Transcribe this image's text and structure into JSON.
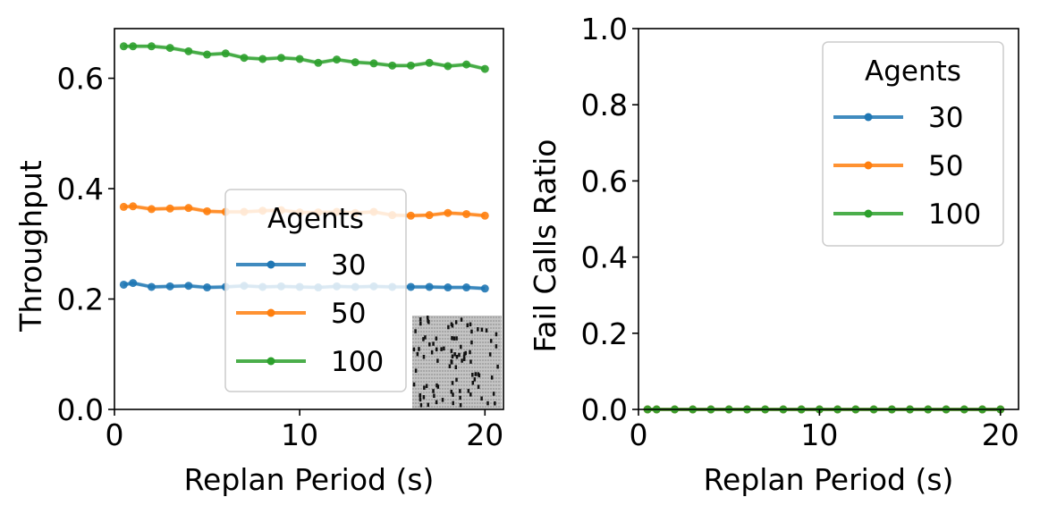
{
  "chart_data": [
    {
      "type": "line",
      "title": "",
      "xlabel": "Replan Period (s)",
      "ylabel": "Throughput",
      "xlim": [
        0,
        21
      ],
      "ylim": [
        0,
        0.69
      ],
      "xticks": [
        0,
        10,
        20
      ],
      "yticks": [
        0.0,
        0.2,
        0.4,
        0.6
      ],
      "ytick_labels": [
        "0.0",
        "0.2",
        "0.4",
        "0.6"
      ],
      "legend": {
        "title": "Agents",
        "location": "center-right"
      },
      "inset": "warehouse-grid-map",
      "x": [
        0.5,
        1,
        2,
        3,
        4,
        5,
        6,
        7,
        8,
        9,
        10,
        11,
        12,
        13,
        14,
        15,
        16,
        17,
        18,
        19,
        20
      ],
      "series": [
        {
          "name": "30",
          "color": "#1f77b4",
          "values": [
            0.226,
            0.229,
            0.222,
            0.223,
            0.224,
            0.221,
            0.222,
            0.224,
            0.222,
            0.223,
            0.222,
            0.221,
            0.223,
            0.222,
            0.223,
            0.222,
            0.222,
            0.222,
            0.221,
            0.221,
            0.219
          ]
        },
        {
          "name": "50",
          "color": "#ff7f0e",
          "values": [
            0.367,
            0.368,
            0.363,
            0.364,
            0.365,
            0.359,
            0.358,
            0.358,
            0.36,
            0.361,
            0.357,
            0.357,
            0.358,
            0.356,
            0.358,
            0.352,
            0.351,
            0.352,
            0.356,
            0.354,
            0.351
          ]
        },
        {
          "name": "100",
          "color": "#2ca02c",
          "values": [
            0.658,
            0.658,
            0.658,
            0.655,
            0.649,
            0.643,
            0.645,
            0.637,
            0.635,
            0.637,
            0.635,
            0.628,
            0.634,
            0.629,
            0.627,
            0.623,
            0.623,
            0.628,
            0.622,
            0.625,
            0.617
          ]
        }
      ]
    },
    {
      "type": "line",
      "title": "",
      "xlabel": "Replan Period (s)",
      "ylabel": "Fail Calls Ratio",
      "xlim": [
        0,
        21
      ],
      "ylim": [
        0,
        1.0
      ],
      "xticks": [
        0,
        10,
        20
      ],
      "yticks": [
        0.0,
        0.2,
        0.4,
        0.6,
        0.8,
        1.0
      ],
      "ytick_labels": [
        "0.0",
        "0.2",
        "0.4",
        "0.6",
        "0.8",
        "1.0"
      ],
      "legend": {
        "title": "Agents",
        "location": "upper-right"
      },
      "x": [
        0.5,
        1,
        2,
        3,
        4,
        5,
        6,
        7,
        8,
        9,
        10,
        11,
        12,
        13,
        14,
        15,
        16,
        17,
        18,
        19,
        20
      ],
      "series": [
        {
          "name": "30",
          "color": "#1f77b4",
          "values": [
            0,
            0,
            0,
            0,
            0,
            0,
            0,
            0,
            0,
            0,
            0,
            0,
            0,
            0,
            0,
            0,
            0,
            0,
            0,
            0,
            0
          ]
        },
        {
          "name": "50",
          "color": "#ff7f0e",
          "values": [
            0,
            0,
            0,
            0,
            0,
            0,
            0,
            0,
            0,
            0,
            0,
            0,
            0,
            0,
            0,
            0,
            0,
            0,
            0,
            0,
            0
          ]
        },
        {
          "name": "100",
          "color": "#2ca02c",
          "values": [
            0,
            0,
            0,
            0,
            0,
            0,
            0,
            0,
            0,
            0,
            0,
            0,
            0,
            0,
            0,
            0,
            0,
            0,
            0,
            0,
            0
          ]
        }
      ]
    }
  ]
}
